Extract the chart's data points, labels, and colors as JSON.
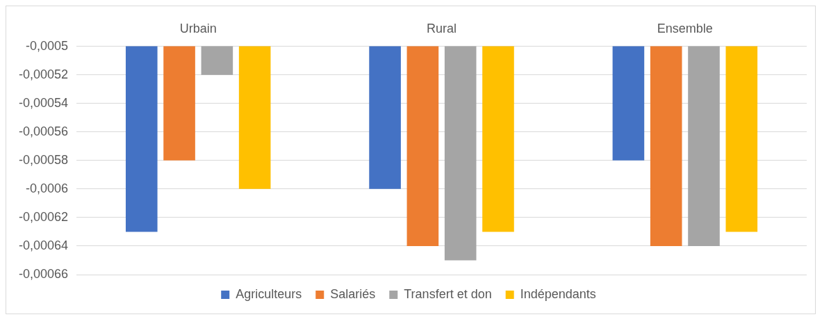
{
  "chart_data": {
    "type": "bar",
    "categories": [
      "Urbain",
      "Rural",
      "Ensemble"
    ],
    "series": [
      {
        "name": "Agriculteurs",
        "color": "#4472c4",
        "values": [
          -0.00063,
          -0.0006,
          -0.00058
        ]
      },
      {
        "name": "Salariés",
        "color": "#ed7d31",
        "values": [
          -0.00058,
          -0.00064,
          -0.00064
        ]
      },
      {
        "name": "Transfert et don",
        "color": "#a5a5a5",
        "values": [
          -0.00052,
          -0.00065,
          -0.00064
        ]
      },
      {
        "name": "Indépendants",
        "color": "#ffc000",
        "values": [
          -0.0006,
          -0.00063,
          -0.00063
        ]
      }
    ],
    "ylim": [
      -0.00066,
      -0.0005
    ],
    "yticks": [
      {
        "value": -0.0005,
        "label": "-0,0005"
      },
      {
        "value": -0.00052,
        "label": "-0,00052"
      },
      {
        "value": -0.00054,
        "label": "-0,00054"
      },
      {
        "value": -0.00056,
        "label": "-0,00056"
      },
      {
        "value": -0.00058,
        "label": "-0,00058"
      },
      {
        "value": -0.0006,
        "label": "-0,0006"
      },
      {
        "value": -0.00062,
        "label": "-0,00062"
      },
      {
        "value": -0.00064,
        "label": "-0,00064"
      },
      {
        "value": -0.00066,
        "label": "-0,00066"
      }
    ],
    "grid": "y",
    "legend": "bottom"
  }
}
